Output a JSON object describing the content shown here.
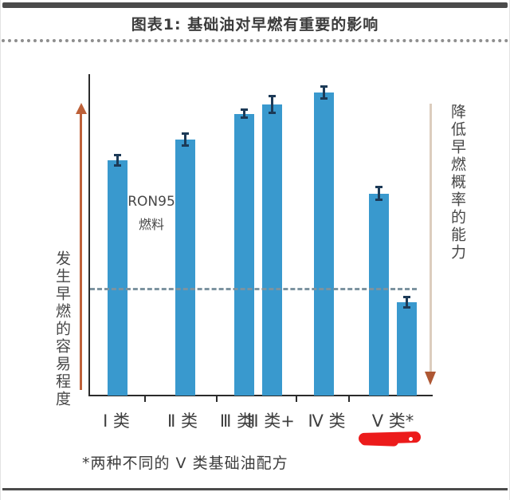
{
  "header": {
    "title": "图表1: 基础油对早燃有重要的影响"
  },
  "chart_data": {
    "type": "bar",
    "title": "图表1: 基础油对早燃有重要的影响",
    "ylabel_left": "发生早燃的容易程度",
    "ylabel_right": "降低早燃概率的能力",
    "annotation": {
      "line1": "RON95",
      "line2": "燃料"
    },
    "categories": [
      "Ⅰ 类",
      "Ⅱ 类",
      "Ⅲ 类",
      "Ⅲ 类+",
      "Ⅳ 类",
      "Ⅴ 类*"
    ],
    "bars": [
      {
        "category": "Ⅰ 类",
        "value": 73.0,
        "error": 2.0
      },
      {
        "category": "Ⅱ 类",
        "value": 79.5,
        "error": 2.2
      },
      {
        "category": "Ⅲ 类",
        "value": 87.5,
        "error": 1.7
      },
      {
        "category": "Ⅲ 类+",
        "value": 90.3,
        "error": 3.0
      },
      {
        "category": "Ⅳ 类",
        "value": 94.0,
        "error": 2.2
      },
      {
        "category": "Ⅴ 类*",
        "value": 62.7,
        "error": 2.4
      },
      {
        "category": "Ⅴ 类*",
        "value": 29.0,
        "error": 1.9
      }
    ],
    "reference_line": {
      "style": "dashed",
      "value": 33.5
    },
    "ylim": [
      0,
      100
    ],
    "y_axis_labeled": false,
    "grid": false,
    "legend": null
  },
  "footnote": "*两种不同的 V 类基础油配方",
  "colors": {
    "bar": "#3999CE",
    "error_bar": "#1C3A57",
    "reference_line": "#7C93A0",
    "axis": "#2B2B2B",
    "arrow_up": "#BD6038",
    "arrow_down_line": "#DCCDBE",
    "arrow_down_head": "#AE5733",
    "red_marker": "#EC1B1B",
    "rule": "#4B4B4B",
    "text": "#3C3C3C"
  }
}
